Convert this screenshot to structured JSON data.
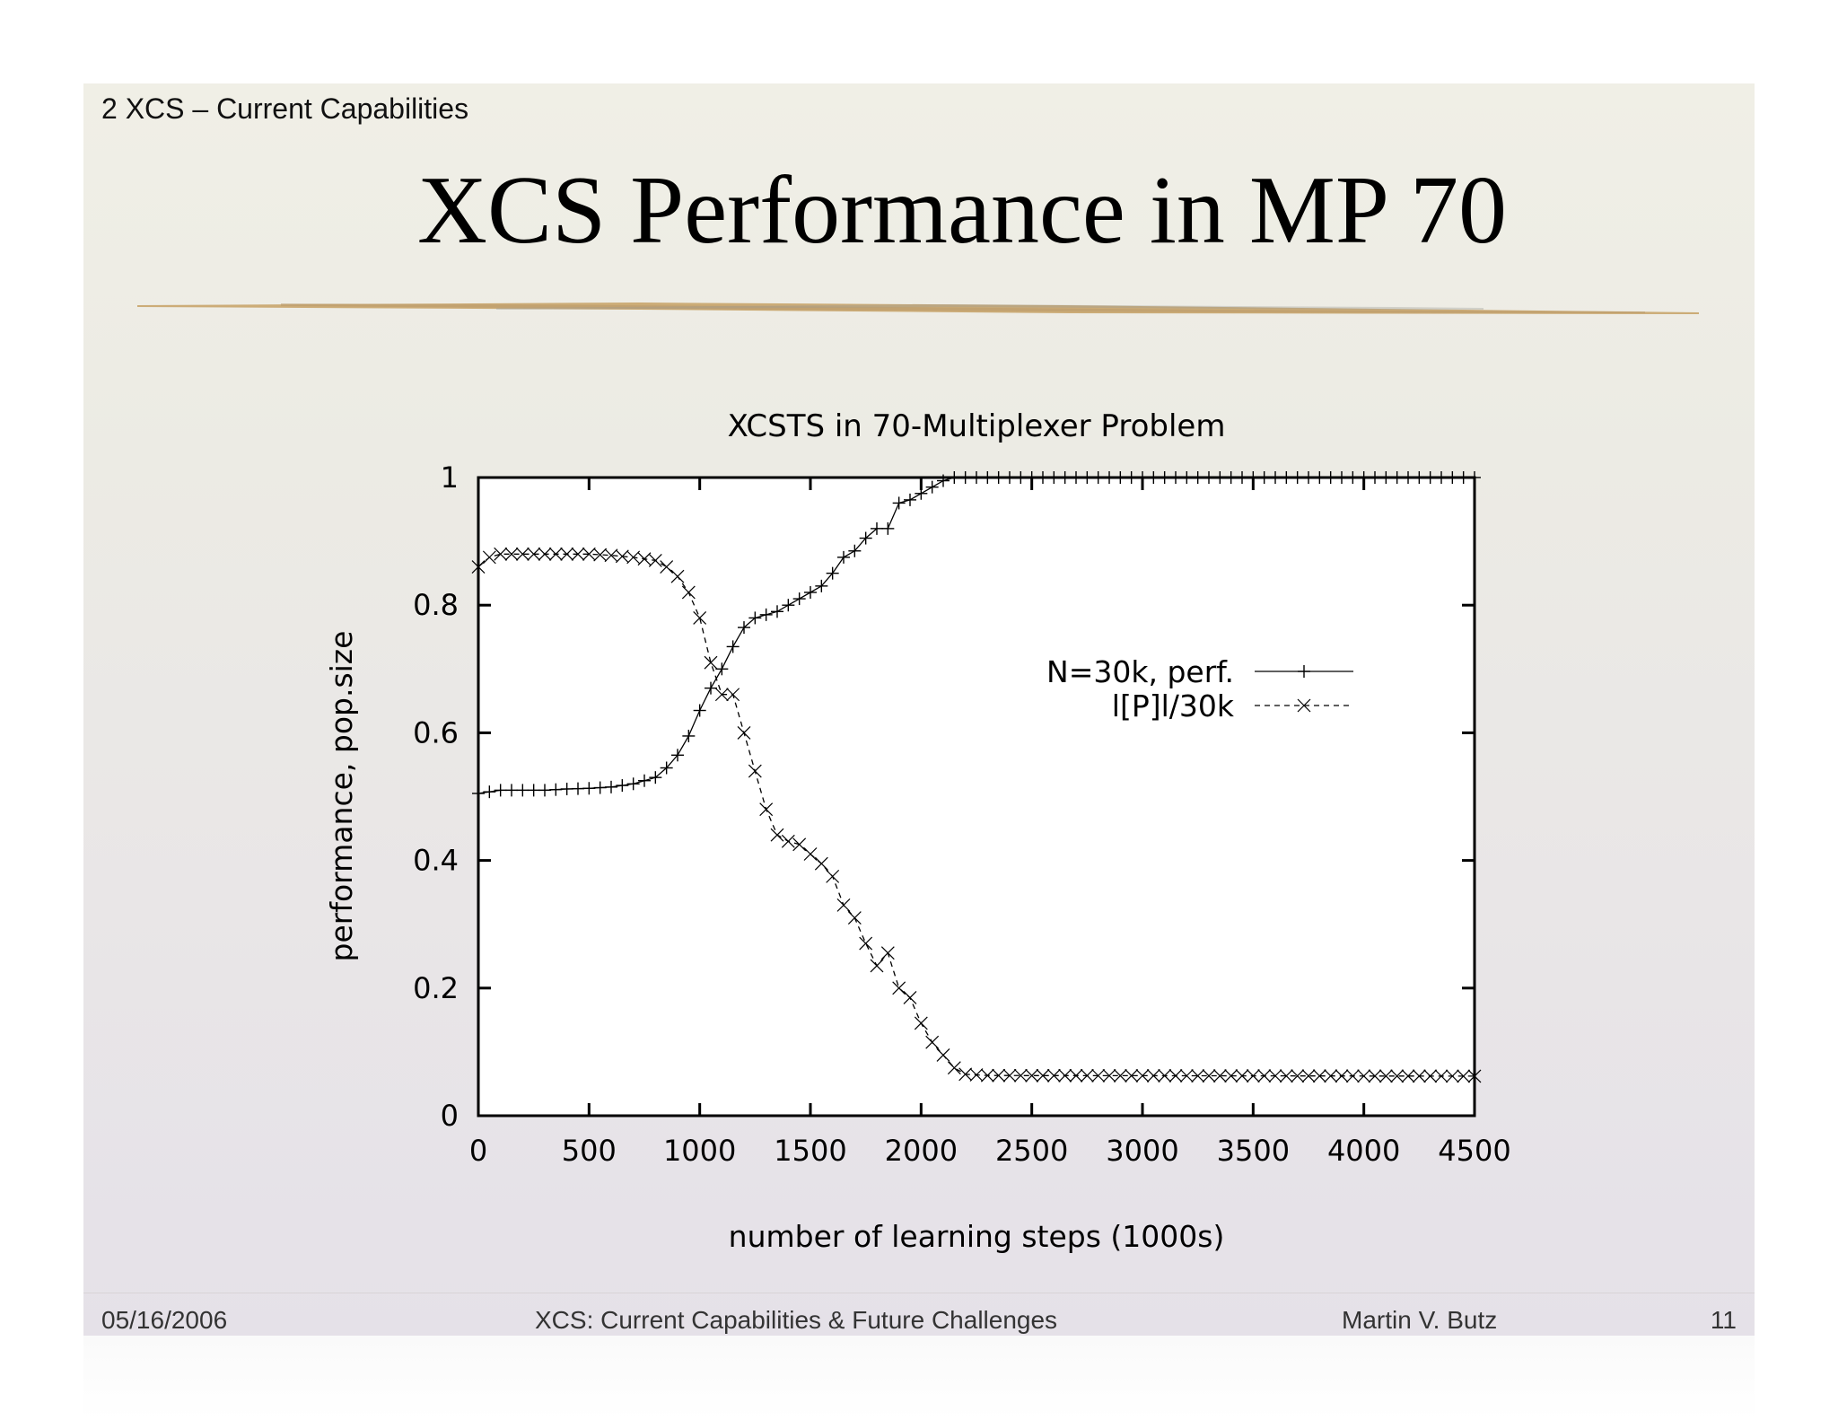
{
  "slide": {
    "section": "2 XCS – Current Capabilities",
    "title": "XCS Performance in MP 70"
  },
  "footer": {
    "date": "05/16/2006",
    "talk_title": "XCS: Current Capabilities & Future Challenges",
    "author": "Martin V. Butz",
    "page": "11"
  },
  "colors": {
    "slide_bg_top": "#f0efe6",
    "slide_bg_bottom": "#e5e1e8",
    "accent_gold": "#c8a46a",
    "chart_plot_bg": "#ffffff",
    "chart_ink": "#000000"
  },
  "chart_data": {
    "type": "line",
    "title": "XCSTS in 70-Multiplexer Problem",
    "xlabel": "number of learning steps (1000s)",
    "ylabel": "performance, pop.size",
    "xlim": [
      0,
      4500
    ],
    "ylim": [
      0,
      1
    ],
    "xticks": [
      "0",
      "500",
      "1000",
      "1500",
      "2000",
      "2500",
      "3000",
      "3500",
      "4000",
      "4500"
    ],
    "yticks": [
      "0",
      "0.2",
      "0.4",
      "0.6",
      "0.8",
      "1"
    ],
    "legend_position": "right",
    "grid": false,
    "series": [
      {
        "name": "N=30k, perf.",
        "marker": "plus",
        "line_style": "solid",
        "x": [
          0,
          100,
          200,
          300,
          400,
          500,
          600,
          700,
          800,
          850,
          900,
          950,
          1000,
          1050,
          1100,
          1150,
          1200,
          1250,
          1300,
          1350,
          1400,
          1450,
          1500,
          1550,
          1600,
          1650,
          1700,
          1750,
          1800,
          1850,
          1900,
          1950,
          2000,
          2050,
          2100,
          2150,
          2200,
          4500
        ],
        "y": [
          0.505,
          0.51,
          0.51,
          0.51,
          0.512,
          0.513,
          0.515,
          0.52,
          0.53,
          0.545,
          0.565,
          0.595,
          0.635,
          0.67,
          0.7,
          0.735,
          0.765,
          0.78,
          0.785,
          0.79,
          0.8,
          0.81,
          0.82,
          0.83,
          0.85,
          0.875,
          0.885,
          0.905,
          0.92,
          0.92,
          0.96,
          0.965,
          0.975,
          0.985,
          0.995,
          1.0,
          1.0,
          1.0
        ]
      },
      {
        "name": "l[P]l/30k",
        "marker": "cross",
        "line_style": "dashed",
        "x": [
          0,
          50,
          100,
          200,
          300,
          400,
          500,
          600,
          700,
          800,
          850,
          900,
          950,
          1000,
          1050,
          1100,
          1150,
          1200,
          1250,
          1300,
          1350,
          1400,
          1450,
          1500,
          1550,
          1600,
          1650,
          1700,
          1750,
          1800,
          1850,
          1900,
          1950,
          2000,
          2050,
          2100,
          2150,
          2200,
          2300,
          4500
        ],
        "y": [
          0.86,
          0.875,
          0.88,
          0.88,
          0.88,
          0.88,
          0.88,
          0.878,
          0.875,
          0.87,
          0.86,
          0.845,
          0.82,
          0.78,
          0.71,
          0.66,
          0.66,
          0.6,
          0.54,
          0.48,
          0.44,
          0.43,
          0.425,
          0.41,
          0.395,
          0.375,
          0.33,
          0.31,
          0.27,
          0.235,
          0.255,
          0.2,
          0.185,
          0.145,
          0.115,
          0.095,
          0.075,
          0.065,
          0.063,
          0.062
        ]
      }
    ]
  }
}
